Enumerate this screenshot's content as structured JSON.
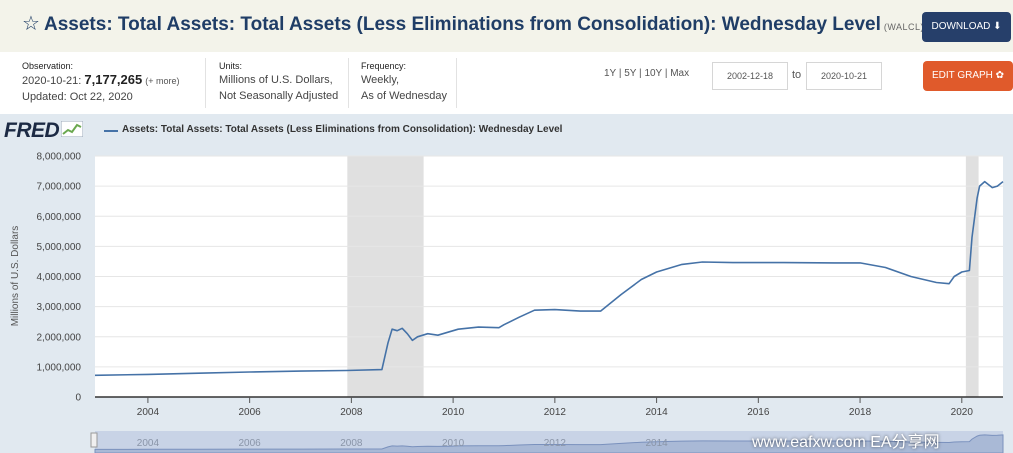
{
  "header": {
    "title": "Assets: Total Assets: Total Assets (Less Eliminations from Consolidation): Wednesday Level",
    "code": "(WALCL)",
    "download_label": "DOWNLOAD ⬇"
  },
  "meta": {
    "observation_label": "Observation:",
    "observation_date": "2020-10-21:",
    "observation_value": "7,177,265",
    "more": "(+ more)",
    "updated": "Updated: Oct 22, 2020",
    "units_label": "Units:",
    "units_line1": "Millions of U.S. Dollars,",
    "units_line2": "Not Seasonally Adjusted",
    "frequency_label": "Frequency:",
    "frequency_line1": "Weekly,",
    "frequency_line2": "As of Wednesday"
  },
  "controls": {
    "range_1y": "1Y",
    "range_5y": "5Y",
    "range_10y": "10Y",
    "range_max": "Max",
    "start_date": "2002-12-18",
    "to": "to",
    "end_date": "2020-10-21",
    "edit_label": "EDIT GRAPH ✿"
  },
  "logo": "FRED",
  "watermark": "www.eafxw.com   EA分享网",
  "chart_data": {
    "type": "line",
    "title": "",
    "legend": "Assets: Total Assets: Total Assets (Less Eliminations from Consolidation): Wednesday Level",
    "ylabel": "Millions of U.S. Dollars",
    "xlabel": "",
    "xlim": [
      2002.96,
      2020.81
    ],
    "ylim": [
      0,
      8000000
    ],
    "yticks": [
      0,
      1000000,
      2000000,
      3000000,
      4000000,
      5000000,
      6000000,
      7000000,
      8000000
    ],
    "ytick_labels": [
      "0",
      "1,000,000",
      "2,000,000",
      "3,000,000",
      "4,000,000",
      "5,000,000",
      "6,000,000",
      "7,000,000",
      "8,000,000"
    ],
    "xticks": [
      2004,
      2006,
      2008,
      2010,
      2012,
      2014,
      2016,
      2018,
      2020
    ],
    "xtick_labels": [
      "2004",
      "2006",
      "2008",
      "2010",
      "2012",
      "2014",
      "2016",
      "2018",
      "2020"
    ],
    "navigator_labels": [
      "2004",
      "2006",
      "2008",
      "2010",
      "2012",
      "2014"
    ],
    "recessions": [
      [
        2007.92,
        2009.42
      ],
      [
        2020.08,
        2020.33
      ]
    ],
    "line_color": "#4572a7",
    "recession_color": "#e0e0e0",
    "series": [
      {
        "name": "Assets: Total Assets: Total Assets (Less Eliminations from Consolidation): Wednesday Level",
        "x": [
          2002.96,
          2004.0,
          2005.0,
          2006.0,
          2007.0,
          2007.9,
          2008.6,
          2008.72,
          2008.8,
          2008.9,
          2009.0,
          2009.1,
          2009.2,
          2009.3,
          2009.5,
          2009.7,
          2009.9,
          2010.1,
          2010.5,
          2010.9,
          2011.0,
          2011.3,
          2011.6,
          2012.0,
          2012.5,
          2012.9,
          2013.3,
          2013.7,
          2014.0,
          2014.5,
          2014.9,
          2015.5,
          2016.5,
          2017.5,
          2018.0,
          2018.5,
          2019.0,
          2019.5,
          2019.75,
          2019.85,
          2020.0,
          2020.15,
          2020.2,
          2020.3,
          2020.35,
          2020.45,
          2020.6,
          2020.7,
          2020.81
        ],
        "values": [
          720000,
          750000,
          790000,
          830000,
          860000,
          880000,
          910000,
          1800000,
          2250000,
          2200000,
          2280000,
          2100000,
          1880000,
          2000000,
          2100000,
          2050000,
          2150000,
          2250000,
          2320000,
          2300000,
          2400000,
          2650000,
          2880000,
          2900000,
          2850000,
          2850000,
          3400000,
          3900000,
          4150000,
          4400000,
          4480000,
          4460000,
          4460000,
          4450000,
          4450000,
          4300000,
          4000000,
          3800000,
          3760000,
          4000000,
          4150000,
          4200000,
          5300000,
          6600000,
          7000000,
          7150000,
          6950000,
          7000000,
          7150000
        ]
      }
    ]
  }
}
